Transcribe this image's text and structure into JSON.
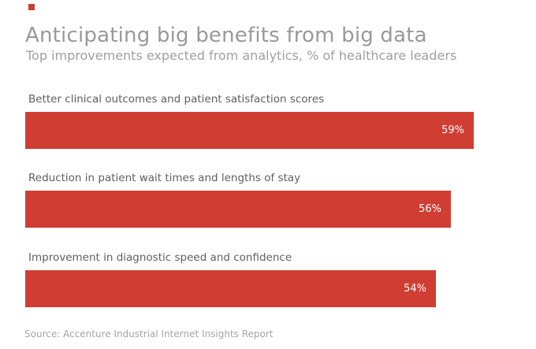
{
  "header": {
    "title": "Anticipating big benefits from big data",
    "subtitle": "Top improvements expected from analytics, % of healthcare leaders"
  },
  "footer": {
    "source": "Source: Accenture Industrial Internet Insights Report"
  },
  "colors": {
    "bar_red": "#D03E33",
    "title_gray": "#999999",
    "subtitle_gray": "#A0A0A0",
    "category_label_gray": "#5F5F5F",
    "value_label_white": "#FFFFFF",
    "source_gray": "#A6A6A6"
  },
  "chart_data": {
    "type": "bar",
    "orientation": "horizontal",
    "title": "Anticipating big benefits from big data",
    "subtitle": "Top improvements expected from analytics, % of healthcare leaders",
    "categories": [
      "Better clinical outcomes and patient satisfaction scores",
      "Reduction in patient wait times and lengths of stay",
      "Improvement in diagnostic speed and confidence"
    ],
    "values": [
      59,
      56,
      54
    ],
    "value_labels": [
      "59%",
      "56%",
      "54%"
    ],
    "unit": "%",
    "value_label_position": "inside-end",
    "grid": false,
    "legend": false,
    "axes_visible": false,
    "source": "Source: Accenture Industrial Internet Insights Report"
  }
}
